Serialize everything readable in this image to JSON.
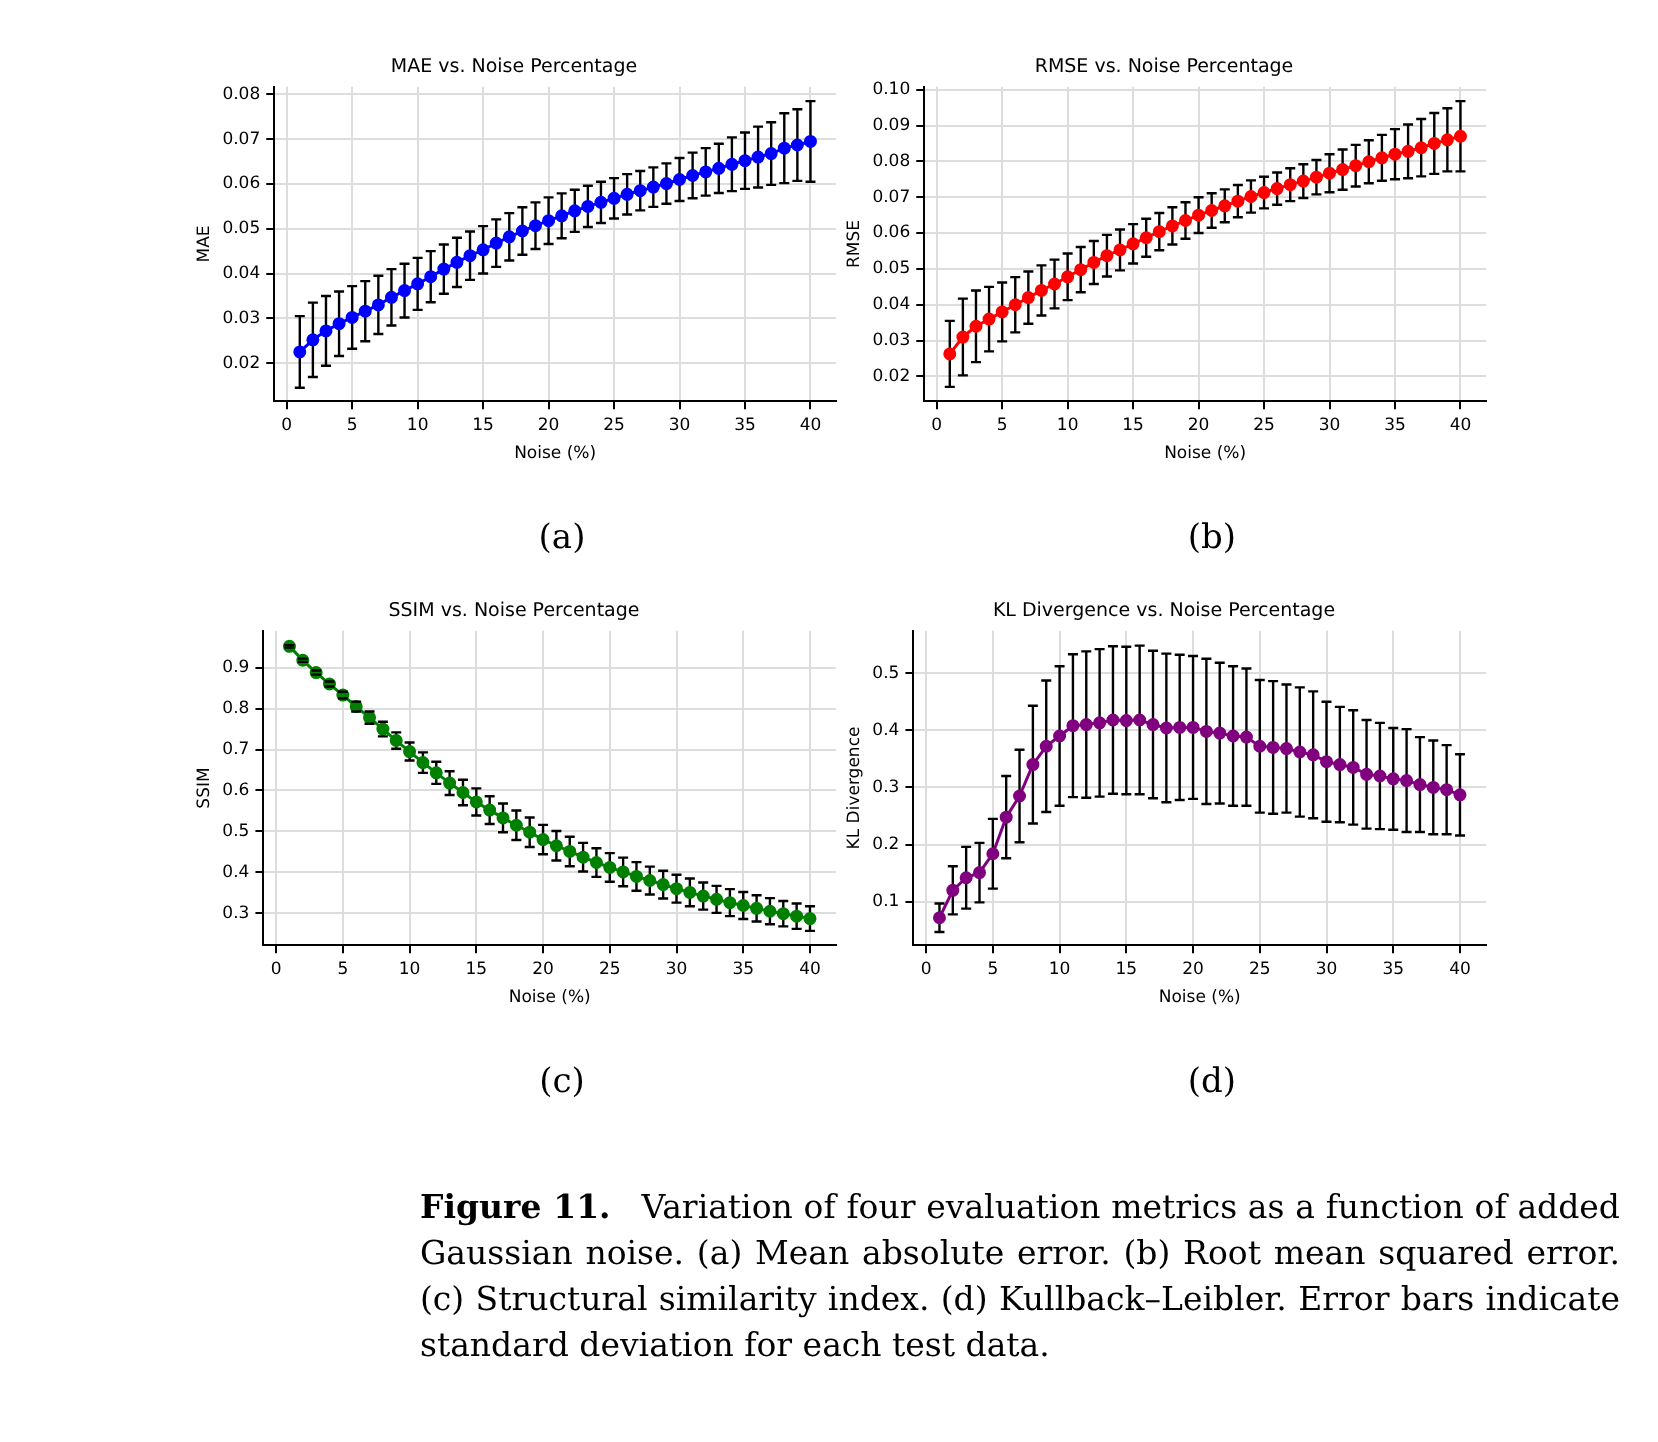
{
  "chart_data": [
    {
      "type": "line",
      "title": "MAE vs. Noise Percentage",
      "xlabel": "Noise (%)",
      "ylabel": "MAE",
      "annotations": [
        "(a)"
      ],
      "grid": true,
      "legend": false,
      "marker": "circle",
      "line_style": "solid",
      "xlim": [
        -0.95,
        41.95
      ],
      "xticks": [
        0,
        5,
        10,
        15,
        20,
        25,
        30,
        35,
        40
      ],
      "ylim": [
        0.0115,
        0.0817
      ],
      "yticks": [
        0.02,
        0.03,
        0.04,
        0.05,
        0.06,
        0.07,
        0.08
      ],
      "x": [
        1,
        2,
        3,
        4,
        5,
        6,
        7,
        8,
        9,
        10,
        11,
        12,
        13,
        14,
        15,
        16,
        17,
        18,
        19,
        20,
        21,
        22,
        23,
        24,
        25,
        26,
        27,
        28,
        29,
        30,
        31,
        32,
        33,
        34,
        35,
        36,
        37,
        38,
        39,
        40
      ],
      "series": [
        {
          "color": "#0000ff",
          "values": [
            0.0225,
            0.0252,
            0.0272,
            0.0288,
            0.0302,
            0.0316,
            0.033,
            0.0347,
            0.0362,
            0.0377,
            0.0393,
            0.041,
            0.0425,
            0.044,
            0.0453,
            0.0468,
            0.0482,
            0.0495,
            0.0507,
            0.0518,
            0.0529,
            0.054,
            0.055,
            0.0559,
            0.0568,
            0.0577,
            0.0585,
            0.0593,
            0.0601,
            0.061,
            0.0619,
            0.0627,
            0.0635,
            0.0644,
            0.0652,
            0.066,
            0.0668,
            0.068,
            0.0687,
            0.0695
          ],
          "errors": [
            0.008,
            0.0083,
            0.0078,
            0.0072,
            0.007,
            0.0067,
            0.0065,
            0.0063,
            0.006,
            0.0058,
            0.0057,
            0.0055,
            0.0055,
            0.0054,
            0.0053,
            0.0053,
            0.0053,
            0.0053,
            0.0052,
            0.0052,
            0.005,
            0.0047,
            0.0046,
            0.0046,
            0.0045,
            0.0045,
            0.0044,
            0.0044,
            0.0045,
            0.0048,
            0.0051,
            0.0053,
            0.0055,
            0.006,
            0.0063,
            0.0068,
            0.007,
            0.0078,
            0.008,
            0.009
          ]
        }
      ]
    },
    {
      "type": "line",
      "title": "RMSE vs. Noise Percentage",
      "xlabel": "Noise (%)",
      "ylabel": "RMSE",
      "annotations": [
        "(b)"
      ],
      "grid": true,
      "legend": false,
      "marker": "circle",
      "line_style": "solid",
      "xlim": [
        -0.95,
        41.95
      ],
      "xticks": [
        0,
        5,
        10,
        15,
        20,
        25,
        30,
        35,
        40
      ],
      "ylim": [
        0.0131,
        0.1008
      ],
      "yticks": [
        0.02,
        0.03,
        0.04,
        0.05,
        0.06,
        0.07,
        0.08,
        0.09,
        {
          "value": 0.1,
          "label": "0.10"
        }
      ],
      "x": [
        1,
        2,
        3,
        4,
        5,
        6,
        7,
        8,
        9,
        10,
        11,
        12,
        13,
        14,
        15,
        16,
        17,
        18,
        19,
        20,
        21,
        22,
        23,
        24,
        25,
        26,
        27,
        28,
        29,
        30,
        31,
        32,
        33,
        34,
        35,
        36,
        37,
        38,
        39,
        40
      ],
      "series": [
        {
          "color": "#ff0000",
          "values": [
            0.0263,
            0.031,
            0.034,
            0.036,
            0.038,
            0.04,
            0.042,
            0.044,
            0.0458,
            0.0478,
            0.0498,
            0.0518,
            0.0537,
            0.0553,
            0.057,
            0.0587,
            0.0604,
            0.062,
            0.0635,
            0.065,
            0.0663,
            0.0676,
            0.0689,
            0.0702,
            0.0713,
            0.0724,
            0.0735,
            0.0745,
            0.0756,
            0.0767,
            0.0777,
            0.0788,
            0.0799,
            0.081,
            0.082,
            0.0828,
            0.0838,
            0.085,
            0.086,
            0.087
          ],
          "errors": [
            0.0092,
            0.0107,
            0.01,
            0.009,
            0.0082,
            0.0077,
            0.0073,
            0.007,
            0.0068,
            0.0065,
            0.0063,
            0.006,
            0.0058,
            0.0057,
            0.0055,
            0.0053,
            0.0052,
            0.0052,
            0.0051,
            0.005,
            0.0048,
            0.0046,
            0.0045,
            0.0045,
            0.0044,
            0.0045,
            0.0046,
            0.0047,
            0.0048,
            0.0053,
            0.0056,
            0.0058,
            0.006,
            0.0064,
            0.007,
            0.0075,
            0.008,
            0.0085,
            0.0088,
            0.0098
          ]
        }
      ]
    },
    {
      "type": "line",
      "title": "SSIM vs. Noise Percentage",
      "xlabel": "Noise (%)",
      "ylabel": "SSIM",
      "annotations": [
        "(c)"
      ],
      "grid": true,
      "legend": false,
      "marker": "circle",
      "line_style": "solid",
      "xlim": [
        -0.95,
        41.95
      ],
      "xticks": [
        0,
        5,
        10,
        15,
        20,
        25,
        30,
        35,
        40
      ],
      "ylim": [
        0.222,
        0.99
      ],
      "yticks": [
        0.3,
        0.4,
        0.5,
        0.6,
        0.7,
        0.8,
        0.9
      ],
      "x": [
        1,
        2,
        3,
        4,
        5,
        6,
        7,
        8,
        9,
        10,
        11,
        12,
        13,
        14,
        15,
        16,
        17,
        18,
        19,
        20,
        21,
        22,
        23,
        24,
        25,
        26,
        27,
        28,
        29,
        30,
        31,
        32,
        33,
        34,
        35,
        36,
        37,
        38,
        39,
        40
      ],
      "series": [
        {
          "color": "#008000",
          "values": [
            0.952,
            0.918,
            0.888,
            0.86,
            0.833,
            0.805,
            0.778,
            0.75,
            0.722,
            0.695,
            0.668,
            0.643,
            0.618,
            0.595,
            0.572,
            0.552,
            0.533,
            0.515,
            0.498,
            0.48,
            0.465,
            0.451,
            0.437,
            0.424,
            0.412,
            0.401,
            0.39,
            0.38,
            0.37,
            0.36,
            0.351,
            0.342,
            0.334,
            0.326,
            0.319,
            0.312,
            0.305,
            0.299,
            0.293,
            0.287
          ],
          "errors": [
            0.003,
            0.004,
            0.005,
            0.006,
            0.008,
            0.012,
            0.015,
            0.018,
            0.02,
            0.022,
            0.025,
            0.027,
            0.029,
            0.031,
            0.033,
            0.034,
            0.035,
            0.036,
            0.036,
            0.036,
            0.036,
            0.036,
            0.035,
            0.035,
            0.035,
            0.035,
            0.035,
            0.034,
            0.034,
            0.034,
            0.034,
            0.033,
            0.033,
            0.033,
            0.033,
            0.032,
            0.032,
            0.031,
            0.031,
            0.03
          ]
        }
      ]
    },
    {
      "type": "line",
      "title": "KL Divergence vs. Noise Percentage",
      "xlabel": "Noise (%)",
      "ylabel": "KL Divergence",
      "annotations": [
        "(d)"
      ],
      "grid": true,
      "legend": false,
      "marker": "circle",
      "line_style": "solid",
      "xlim": [
        -0.95,
        41.95
      ],
      "xticks": [
        0,
        5,
        10,
        15,
        20,
        25,
        30,
        35,
        40
      ],
      "ylim": [
        0.024,
        0.574
      ],
      "yticks": [
        0.1,
        0.2,
        0.3,
        0.4,
        0.5
      ],
      "x": [
        1,
        2,
        3,
        4,
        5,
        6,
        7,
        8,
        9,
        10,
        11,
        12,
        13,
        14,
        15,
        16,
        17,
        18,
        19,
        20,
        21,
        22,
        23,
        24,
        25,
        26,
        27,
        28,
        29,
        30,
        31,
        32,
        33,
        34,
        35,
        36,
        37,
        38,
        39,
        40
      ],
      "series": [
        {
          "color": "#800080",
          "values": [
            0.072,
            0.12,
            0.142,
            0.151,
            0.184,
            0.248,
            0.285,
            0.34,
            0.372,
            0.39,
            0.408,
            0.41,
            0.413,
            0.418,
            0.417,
            0.418,
            0.41,
            0.404,
            0.405,
            0.405,
            0.398,
            0.395,
            0.39,
            0.388,
            0.372,
            0.37,
            0.368,
            0.362,
            0.357,
            0.345,
            0.34,
            0.335,
            0.323,
            0.32,
            0.315,
            0.312,
            0.305,
            0.3,
            0.296,
            0.287
          ],
          "errors": [
            0.025,
            0.042,
            0.054,
            0.052,
            0.061,
            0.072,
            0.081,
            0.103,
            0.115,
            0.122,
            0.125,
            0.128,
            0.129,
            0.129,
            0.129,
            0.13,
            0.129,
            0.13,
            0.127,
            0.125,
            0.127,
            0.123,
            0.122,
            0.12,
            0.116,
            0.116,
            0.112,
            0.113,
            0.111,
            0.105,
            0.101,
            0.1,
            0.095,
            0.093,
            0.089,
            0.09,
            0.083,
            0.082,
            0.078,
            0.071
          ]
        }
      ]
    },
    {
      "type": "other",
      "annotations": [
        "Figure 11.",
        "Variation of four evaluation metrics as a function of added Gaussian noise. (a) Mean absolute error. (b) Root mean squared error. (c) Structural similarity index. (d) Kullback–Leibler. Error bars indicate standard deviation for each test data."
      ]
    }
  ]
}
